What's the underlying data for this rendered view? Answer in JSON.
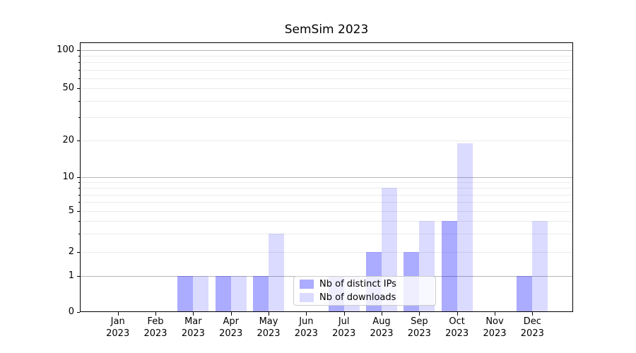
{
  "chart_data": {
    "type": "bar",
    "title": "SemSim 2023",
    "yscale": "symlog",
    "grid": "both",
    "legend_position": "lower center",
    "categories": [
      "Jan",
      "Feb",
      "Mar",
      "Apr",
      "May",
      "Jun",
      "Jul",
      "Aug",
      "Sep",
      "Oct",
      "Nov",
      "Dec"
    ],
    "x_year": "2023",
    "y_ticks": [
      0,
      1,
      2,
      5,
      10,
      20,
      50,
      100
    ],
    "ylim": [
      0,
      120
    ],
    "series": [
      {
        "name": "Nb of distinct IPs",
        "color": "rgba(0,0,255,0.33)",
        "values": [
          0,
          0,
          1,
          1,
          1,
          0,
          1,
          2,
          2,
          4,
          0,
          1
        ]
      },
      {
        "name": "Nb of downloads",
        "color": "rgba(0,0,255,0.14)",
        "values": [
          0,
          0,
          1,
          1,
          3,
          0,
          1,
          8,
          4,
          19,
          0,
          4
        ]
      }
    ]
  },
  "colors": {
    "grid_strong": "#b7b7b7",
    "grid_weak": "#ececec",
    "frame": "#000000",
    "legend_border": "#cccccc"
  }
}
